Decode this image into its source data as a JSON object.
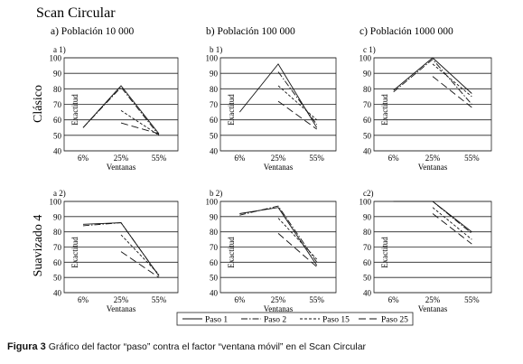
{
  "figure_title": "Scan Circular",
  "column_titles": [
    "a) Población 10 000",
    "b) Población 100 000",
    "c) Población 1000 000"
  ],
  "row_titles": [
    "Clásico",
    "Suavizado 4"
  ],
  "caption": {
    "label": "Figura 3",
    "text": "Gráfico del factor “paso” contra el factor “ventana móvil” en el Scan Circular"
  },
  "legend": [
    "Paso 1",
    "Paso 2",
    "Paso 15",
    "Paso 25"
  ],
  "series_styles": [
    {
      "name": "Paso 1",
      "dash": "",
      "color": "#111111"
    },
    {
      "name": "Paso 2",
      "dash": "7,2,1.5,2",
      "color": "#111111"
    },
    {
      "name": "Paso 15",
      "dash": "3,2",
      "color": "#111111"
    },
    {
      "name": "Paso 25",
      "dash": "8,4",
      "color": "#111111"
    }
  ],
  "chart_data": [
    {
      "type": "line",
      "panel_label": "a 1)",
      "xlabel": "Ventanas",
      "ylabel": "Exactitud",
      "categories": [
        "6%",
        "25%",
        "55%"
      ],
      "ylim": [
        40,
        100
      ],
      "yticks": [
        40,
        50,
        60,
        70,
        80,
        90,
        100
      ],
      "grid": true,
      "series": [
        {
          "values": [
            55,
            82,
            51
          ]
        },
        {
          "values": [
            55,
            81,
            50
          ]
        },
        {
          "values": [
            null,
            66,
            50
          ]
        },
        {
          "values": [
            null,
            58,
            51
          ]
        }
      ]
    },
    {
      "type": "line",
      "panel_label": "b 1)",
      "xlabel": "Ventanas",
      "ylabel": "Exactitud",
      "categories": [
        "6%",
        "25%",
        "55%"
      ],
      "ylim": [
        40,
        100
      ],
      "yticks": [
        40,
        50,
        60,
        70,
        80,
        90,
        100
      ],
      "grid": true,
      "series": [
        {
          "values": [
            65,
            96,
            55
          ]
        },
        {
          "values": [
            null,
            91,
            57
          ]
        },
        {
          "values": [
            null,
            82,
            60
          ]
        },
        {
          "values": [
            null,
            72,
            54
          ]
        }
      ]
    },
    {
      "type": "line",
      "panel_label": "c 1)",
      "xlabel": "Ventanas",
      "ylabel": "Exactitud",
      "categories": [
        "6%",
        "25%",
        "55%"
      ],
      "ylim": [
        40,
        100
      ],
      "yticks": [
        40,
        50,
        60,
        70,
        80,
        90,
        100
      ],
      "grid": true,
      "series": [
        {
          "values": [
            79,
            100,
            77
          ]
        },
        {
          "values": [
            78,
            99,
            70
          ]
        },
        {
          "values": [
            null,
            96,
            75
          ]
        },
        {
          "values": [
            null,
            88,
            68
          ]
        }
      ]
    },
    {
      "type": "line",
      "panel_label": "a 2)",
      "xlabel": "Ventanas",
      "ylabel": "Exactitud",
      "categories": [
        "6%",
        "25%",
        "55%"
      ],
      "ylim": [
        40,
        100
      ],
      "yticks": [
        40,
        50,
        60,
        70,
        80,
        90,
        100
      ],
      "grid": true,
      "series": [
        {
          "values": [
            85,
            86,
            51
          ]
        },
        {
          "values": [
            84,
            86,
            51
          ]
        },
        {
          "values": [
            null,
            78,
            52
          ]
        },
        {
          "values": [
            null,
            67,
            50
          ]
        }
      ]
    },
    {
      "type": "line",
      "panel_label": "b 2)",
      "xlabel": "Ventanas",
      "ylabel": "Exactitud",
      "categories": [
        "6%",
        "25%",
        "55%"
      ],
      "ylim": [
        40,
        100
      ],
      "yticks": [
        40,
        50,
        60,
        70,
        80,
        90,
        100
      ],
      "grid": true,
      "series": [
        {
          "values": [
            92,
            96,
            58
          ]
        },
        {
          "values": [
            91,
            97,
            60
          ]
        },
        {
          "values": [
            null,
            89,
            62
          ]
        },
        {
          "values": [
            null,
            79,
            57
          ]
        }
      ]
    },
    {
      "type": "line",
      "panel_label": "c2)",
      "xlabel": "Ventanas",
      "ylabel": "Exactitud",
      "categories": [
        "6%",
        "25%",
        "55%"
      ],
      "ylim": [
        40,
        100
      ],
      "yticks": [
        40,
        50,
        60,
        70,
        80,
        90,
        100
      ],
      "grid": true,
      "series": [
        {
          "values": [
            100,
            100,
            80
          ]
        },
        {
          "values": [
            100,
            100,
            79
          ]
        },
        {
          "values": [
            null,
            96,
            75
          ]
        },
        {
          "values": [
            null,
            92,
            72
          ]
        }
      ]
    }
  ]
}
